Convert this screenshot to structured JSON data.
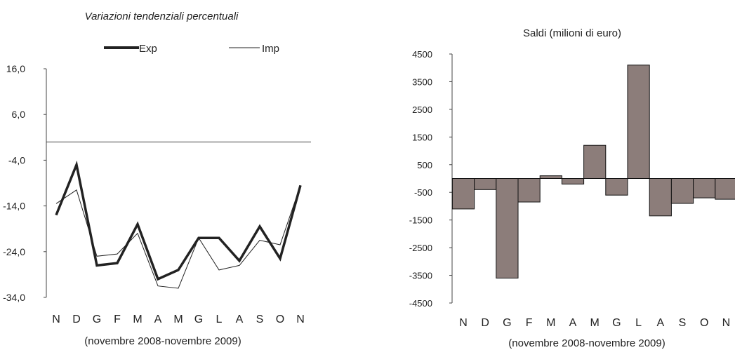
{
  "chart_data": [
    {
      "type": "line",
      "title": "Variazioni tendenziali percentuali",
      "xlabel": "(novembre 2008-novembre 2009)",
      "ylabel": "",
      "categories": [
        "N",
        "D",
        "G",
        "F",
        "M",
        "A",
        "M",
        "G",
        "L",
        "A",
        "S",
        "O",
        "N"
      ],
      "ylim": [
        -34,
        16
      ],
      "yticks": [
        "16,0",
        "6,0",
        "-4,0",
        "-14,0",
        "-24,0",
        "-34,0"
      ],
      "ytick_values": [
        16,
        6,
        -4,
        -14,
        -24,
        -34
      ],
      "legend_position": "top",
      "grid": false,
      "series": [
        {
          "name": "Exp",
          "color": "#222222",
          "values": [
            -16.0,
            -5.0,
            -27.0,
            -26.5,
            -18.0,
            -30.0,
            -28.0,
            -21.0,
            -21.0,
            -26.0,
            -18.5,
            -25.5,
            -9.5
          ]
        },
        {
          "name": "Imp",
          "color": "#222222",
          "values": [
            -13.5,
            -10.5,
            -25.0,
            -24.5,
            -20.0,
            -31.5,
            -32.0,
            -21.0,
            -28.0,
            -27.0,
            -21.5,
            -22.5,
            -9.5
          ]
        }
      ]
    },
    {
      "type": "bar",
      "title": "Saldi (milioni di euro)",
      "xlabel": "(novembre 2008-novembre 2009)",
      "ylabel": "",
      "categories": [
        "N",
        "D",
        "G",
        "F",
        "M",
        "A",
        "M",
        "G",
        "L",
        "A",
        "S",
        "O",
        "N"
      ],
      "values": [
        -1100,
        -400,
        -3600,
        -850,
        100,
        -200,
        1200,
        -600,
        4100,
        -1350,
        -900,
        -700,
        -750
      ],
      "ylim": [
        -4500,
        4500
      ],
      "yticks": [
        "4500",
        "3500",
        "2500",
        "1500",
        "500",
        "-500",
        "-1500",
        "-2500",
        "-3500",
        "-4500"
      ],
      "ytick_values": [
        4500,
        3500,
        2500,
        1500,
        500,
        -500,
        -1500,
        -2500,
        -3500,
        -4500
      ],
      "bar_color": "#8c7d7a",
      "grid": false
    }
  ]
}
